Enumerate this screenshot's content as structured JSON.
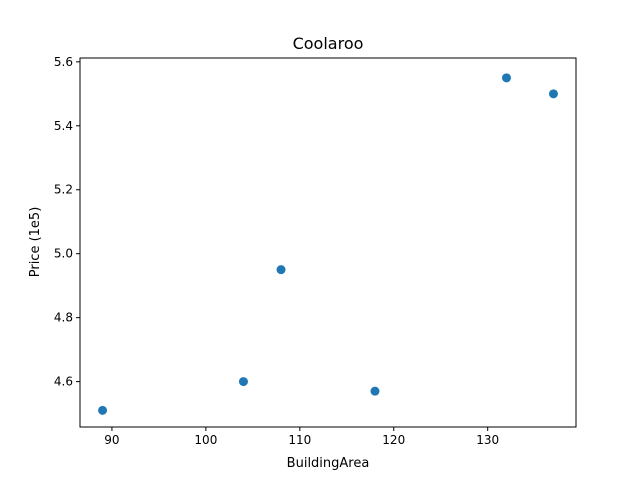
{
  "chart_data": {
    "type": "scatter",
    "title": "Coolaroo",
    "xlabel": "BuildingArea",
    "ylabel": "Price (1e5)",
    "grid": false,
    "x": [
      89,
      104,
      108,
      118,
      132,
      137
    ],
    "y": [
      4.51,
      4.6,
      4.95,
      4.57,
      5.55,
      5.5
    ],
    "xlim": [
      86.6,
      139.4
    ],
    "ylim": [
      4.458,
      5.612
    ],
    "xticks": [
      90,
      100,
      110,
      120,
      130
    ],
    "xtick_labels": [
      "90",
      "100",
      "110",
      "120",
      "130"
    ],
    "yticks": [
      4.6,
      4.8,
      5.0,
      5.2,
      5.4,
      5.6
    ],
    "ytick_labels": [
      "4.6",
      "4.8",
      "5.0",
      "5.2",
      "5.4",
      "5.6"
    ],
    "marker_color": "#1f77b4"
  }
}
